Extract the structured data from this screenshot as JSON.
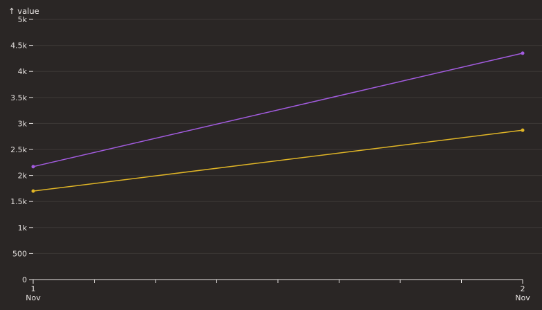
{
  "chart_data": {
    "type": "line",
    "title": "",
    "xlabel": "",
    "ylabel": "↑ value",
    "x": [
      "1 Nov",
      "2 Nov"
    ],
    "x_tick_labels": [
      {
        "day": "1",
        "month": "Nov"
      },
      {
        "day": "2",
        "month": "Nov"
      }
    ],
    "x_minor_ticks_between": 7,
    "ylim": [
      0,
      5000
    ],
    "y_ticks": [
      0,
      500,
      1000,
      1500,
      2000,
      2500,
      3000,
      3500,
      4000,
      4500,
      5000
    ],
    "y_tick_labels": [
      "0",
      "500",
      "1k",
      "1.5k",
      "2k",
      "2.5k",
      "3k",
      "3.5k",
      "4k",
      "4.5k",
      "5k"
    ],
    "grid": true,
    "legend": "none",
    "series": [
      {
        "values": [
          2170,
          4350
        ],
        "color": "#a35ce0"
      },
      {
        "values": [
          1700,
          2870
        ],
        "color": "#e0b526"
      }
    ]
  },
  "colors": {
    "background": "#2a2625",
    "grid": "#3d3837",
    "axis": "#e8e4e2",
    "text": "#e8e4e2"
  }
}
